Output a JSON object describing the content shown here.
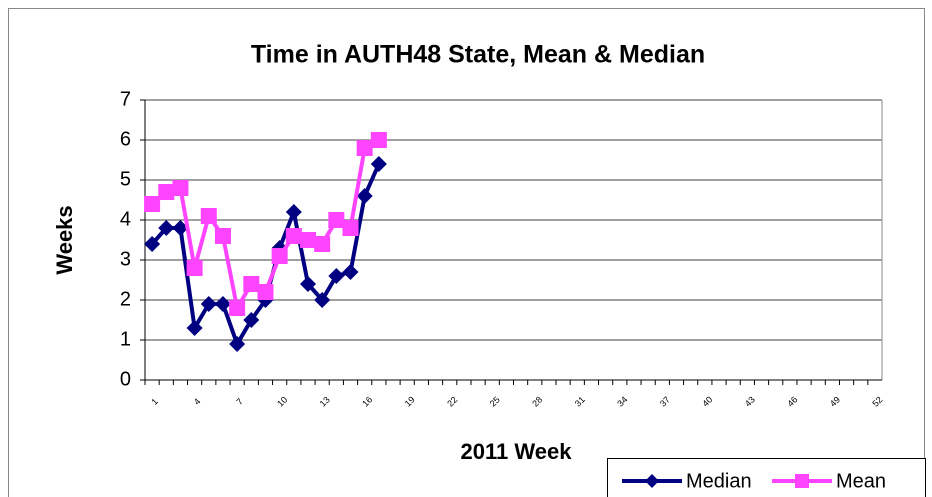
{
  "chart_data": {
    "type": "line",
    "title": "Time in AUTH48 State, Mean & Median",
    "x_label": "2011 Week",
    "y_label": "Weeks",
    "categories": [
      "1",
      null,
      null,
      "4",
      null,
      null,
      "7",
      null,
      null,
      "10",
      null,
      null,
      "13",
      null,
      null,
      "16",
      null,
      null,
      "19",
      null,
      null,
      "22",
      null,
      null,
      "25",
      null,
      null,
      "28",
      null,
      null,
      "31",
      null,
      null,
      "34",
      null,
      null,
      "37",
      null,
      null,
      "40",
      null,
      null,
      "43",
      null,
      null,
      "46",
      null,
      null,
      "49",
      null,
      null,
      "52"
    ],
    "series": [
      {
        "name": "Median",
        "color": "#000080",
        "marker": "diamond",
        "values": [
          3.4,
          3.8,
          3.8,
          1.3,
          1.9,
          1.9,
          0.9,
          1.5,
          2.0,
          3.3,
          4.2,
          2.4,
          2.0,
          2.6,
          2.7,
          4.6,
          5.4,
          null,
          null,
          null,
          null,
          null,
          null,
          null,
          null,
          null,
          null,
          null,
          null,
          null,
          null,
          null,
          null,
          null,
          null,
          null,
          null,
          null,
          null,
          null,
          null,
          null,
          null,
          null,
          null,
          null,
          null,
          null,
          null,
          null,
          null,
          null
        ]
      },
      {
        "name": "Mean",
        "color": "#ff44ff",
        "marker": "square",
        "values": [
          4.4,
          4.7,
          4.8,
          2.8,
          4.1,
          3.6,
          1.8,
          2.4,
          2.2,
          3.1,
          3.6,
          3.5,
          3.4,
          4.0,
          3.8,
          5.8,
          6.0,
          null,
          null,
          null,
          null,
          null,
          null,
          null,
          null,
          null,
          null,
          null,
          null,
          null,
          null,
          null,
          null,
          null,
          null,
          null,
          null,
          null,
          null,
          null,
          null,
          null,
          null,
          null,
          null,
          null,
          null,
          null,
          null,
          null,
          null,
          null
        ]
      }
    ],
    "ylim": [
      0,
      7
    ],
    "yticks": [
      0,
      1,
      2,
      3,
      4,
      5,
      6,
      7
    ],
    "grid": true,
    "legend": "bottom-right"
  }
}
